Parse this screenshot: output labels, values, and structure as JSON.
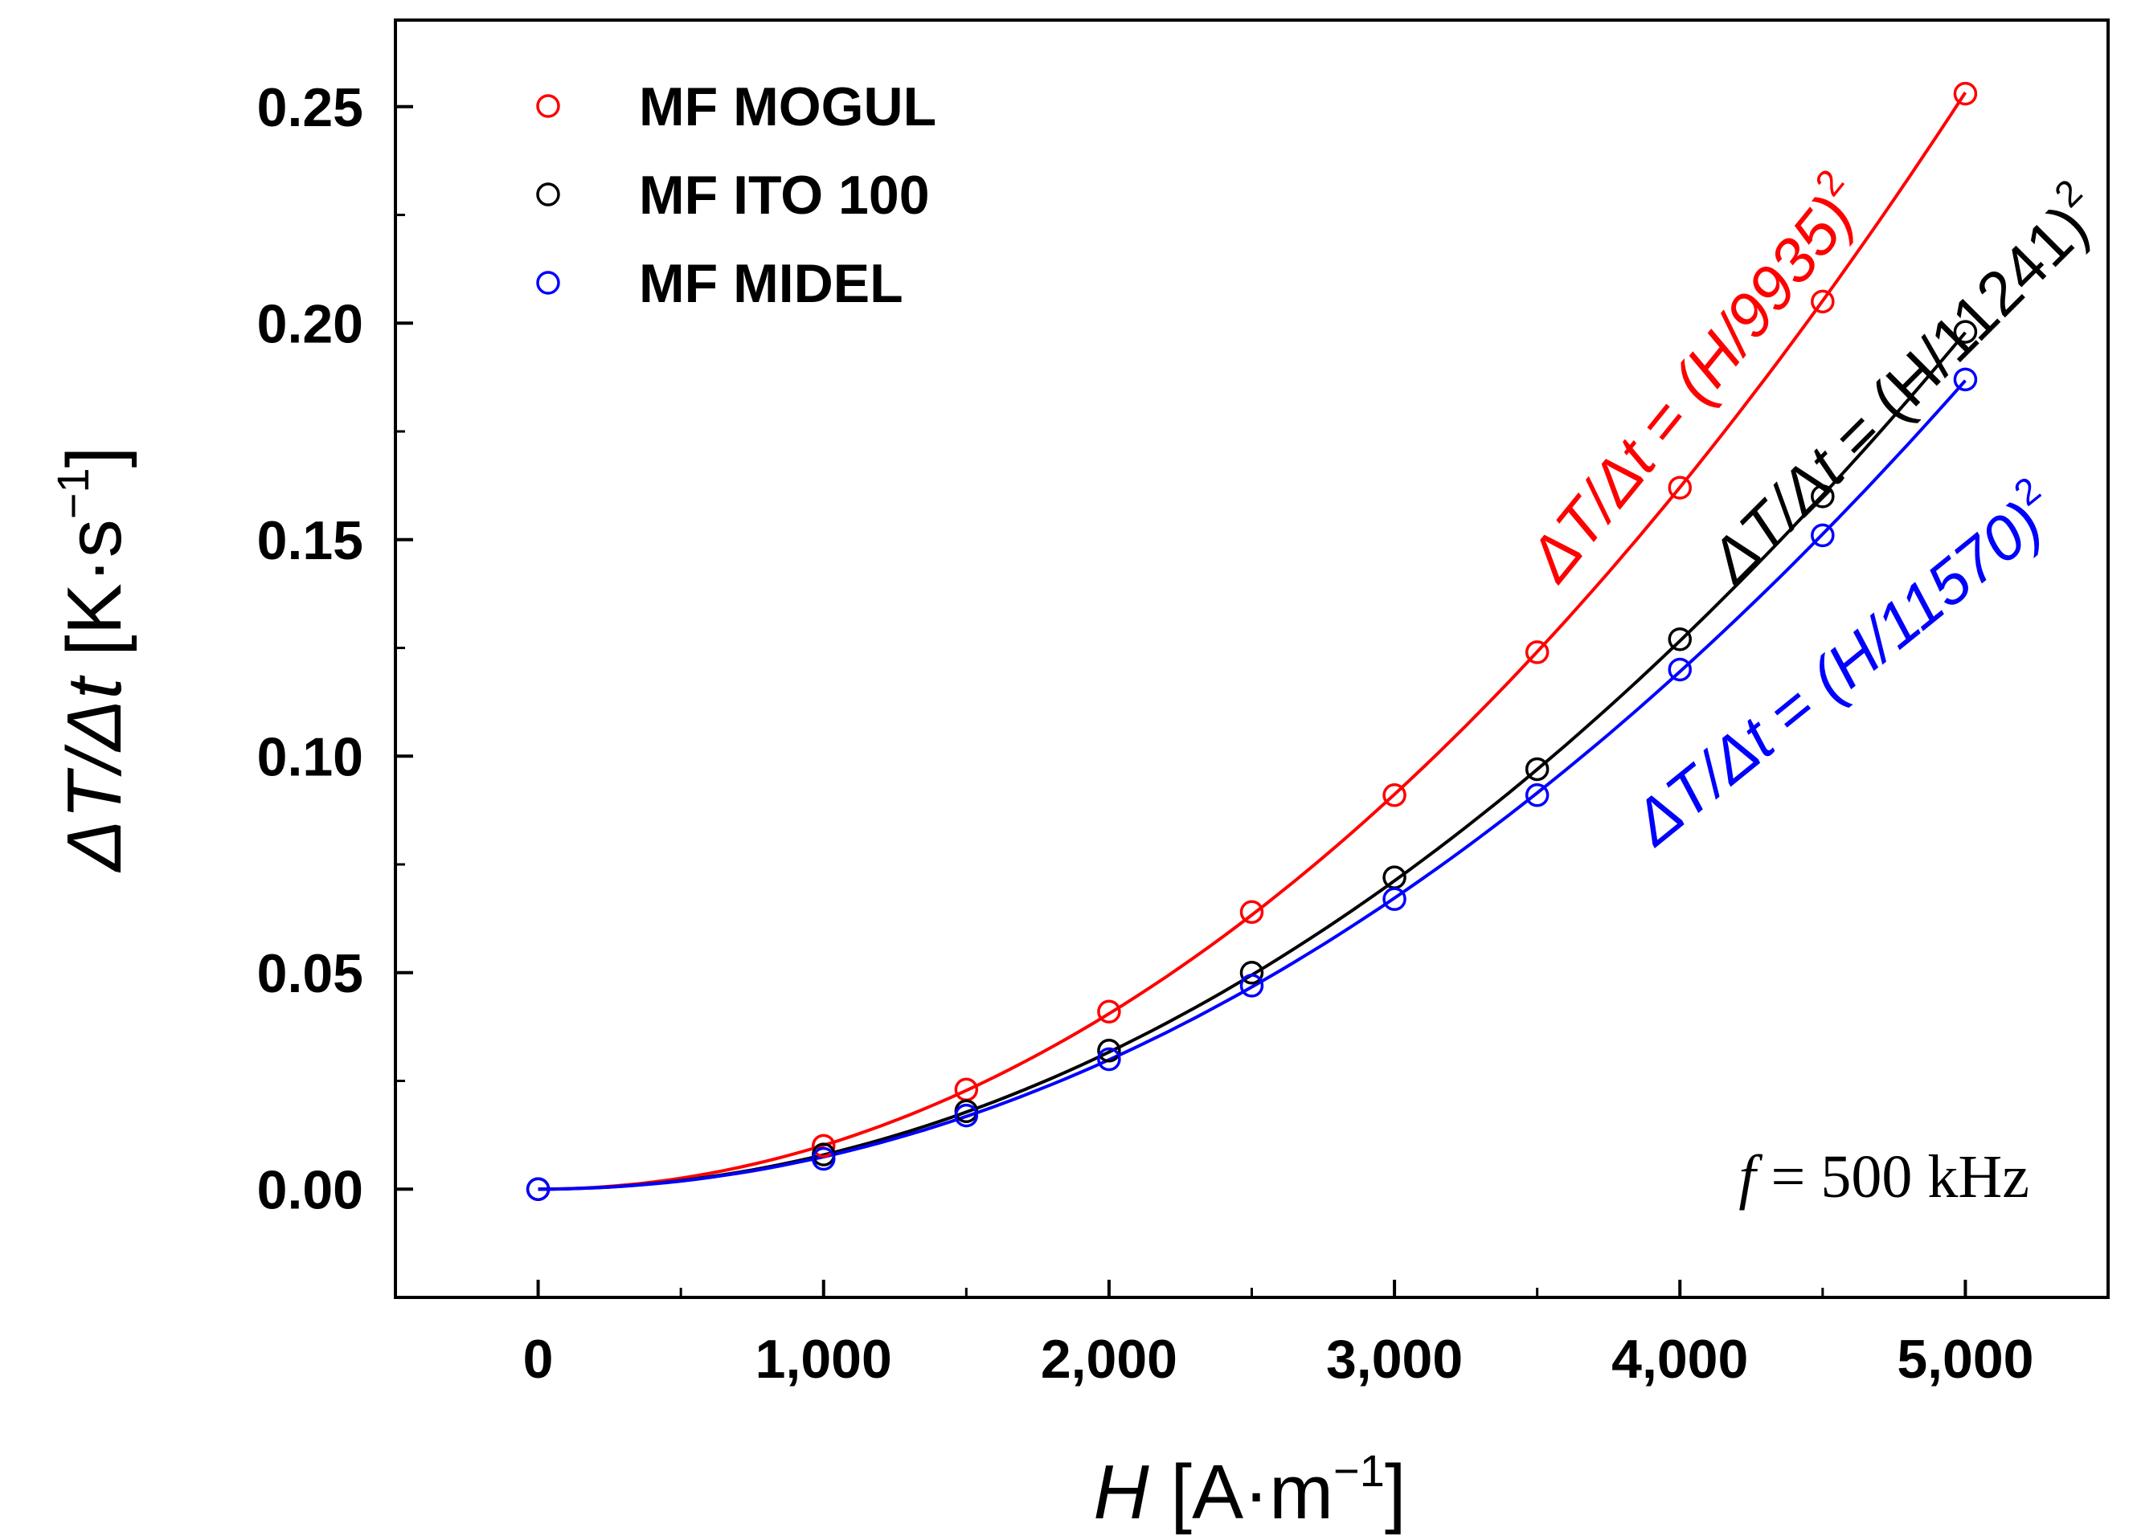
{
  "chart_data": {
    "type": "scatter",
    "xlabel": {
      "var": "H",
      "unit": "[A·m",
      "exp": "−1",
      "close": "]"
    },
    "ylabel": {
      "var": "ΔT/Δt",
      "unit": "[K·s",
      "exp": "−1",
      "close": "]"
    },
    "xlim": [
      -500,
      5500
    ],
    "ylim": [
      -0.025,
      0.27
    ],
    "x_ticks": [
      0,
      1000,
      2000,
      3000,
      4000,
      5000
    ],
    "x_tick_labels": [
      "0",
      "1,000",
      "2,000",
      "3,000",
      "4,000",
      "5,000"
    ],
    "x_minor_ticks": [
      -500,
      500,
      1500,
      2500,
      3500,
      4500,
      5500
    ],
    "y_ticks": [
      0,
      0.05,
      0.1,
      0.15,
      0.2,
      0.25
    ],
    "y_tick_labels": [
      "0.00",
      "0.05",
      "0.10",
      "0.15",
      "0.20",
      "0.25"
    ],
    "y_minor_ticks": [
      -0.025,
      0.025,
      0.075,
      0.125,
      0.175,
      0.225
    ],
    "x": [
      0,
      1000,
      1500,
      2000,
      2500,
      3000,
      3500,
      4000,
      4500,
      5000
    ],
    "series": [
      {
        "name": "MF MOGUL",
        "color": "#ff0000",
        "values": [
          0.0,
          0.01,
          0.023,
          0.041,
          0.064,
          0.091,
          0.124,
          0.162,
          0.205,
          0.253
        ],
        "fit_divisor": 9935,
        "fit_label": {
          "lhs": "ΔT/Δt",
          "eq": " = ",
          "rhs": "(H/9935)",
          "exp": "2"
        }
      },
      {
        "name": "MF ITO 100",
        "color": "#000000",
        "values": [
          0.0,
          0.008,
          0.018,
          0.032,
          0.05,
          0.072,
          0.097,
          0.127,
          0.16,
          0.198
        ],
        "fit_divisor": 11241,
        "fit_label": {
          "lhs": "ΔT/Δt",
          "eq": " = ",
          "rhs": "(H/11241)",
          "exp": "2"
        }
      },
      {
        "name": "MF MIDEL",
        "color": "#0000ff",
        "values": [
          0.0,
          0.007,
          0.017,
          0.03,
          0.047,
          0.067,
          0.091,
          0.12,
          0.151,
          0.187
        ],
        "fit_divisor": 11570,
        "fit_label": {
          "lhs": "ΔT/Δt",
          "eq": " = ",
          "rhs": "(H/11570)",
          "exp": "2"
        }
      }
    ],
    "legend_position": "top-left",
    "annotation": {
      "var": "f",
      "text": " = 500 kHz"
    }
  }
}
